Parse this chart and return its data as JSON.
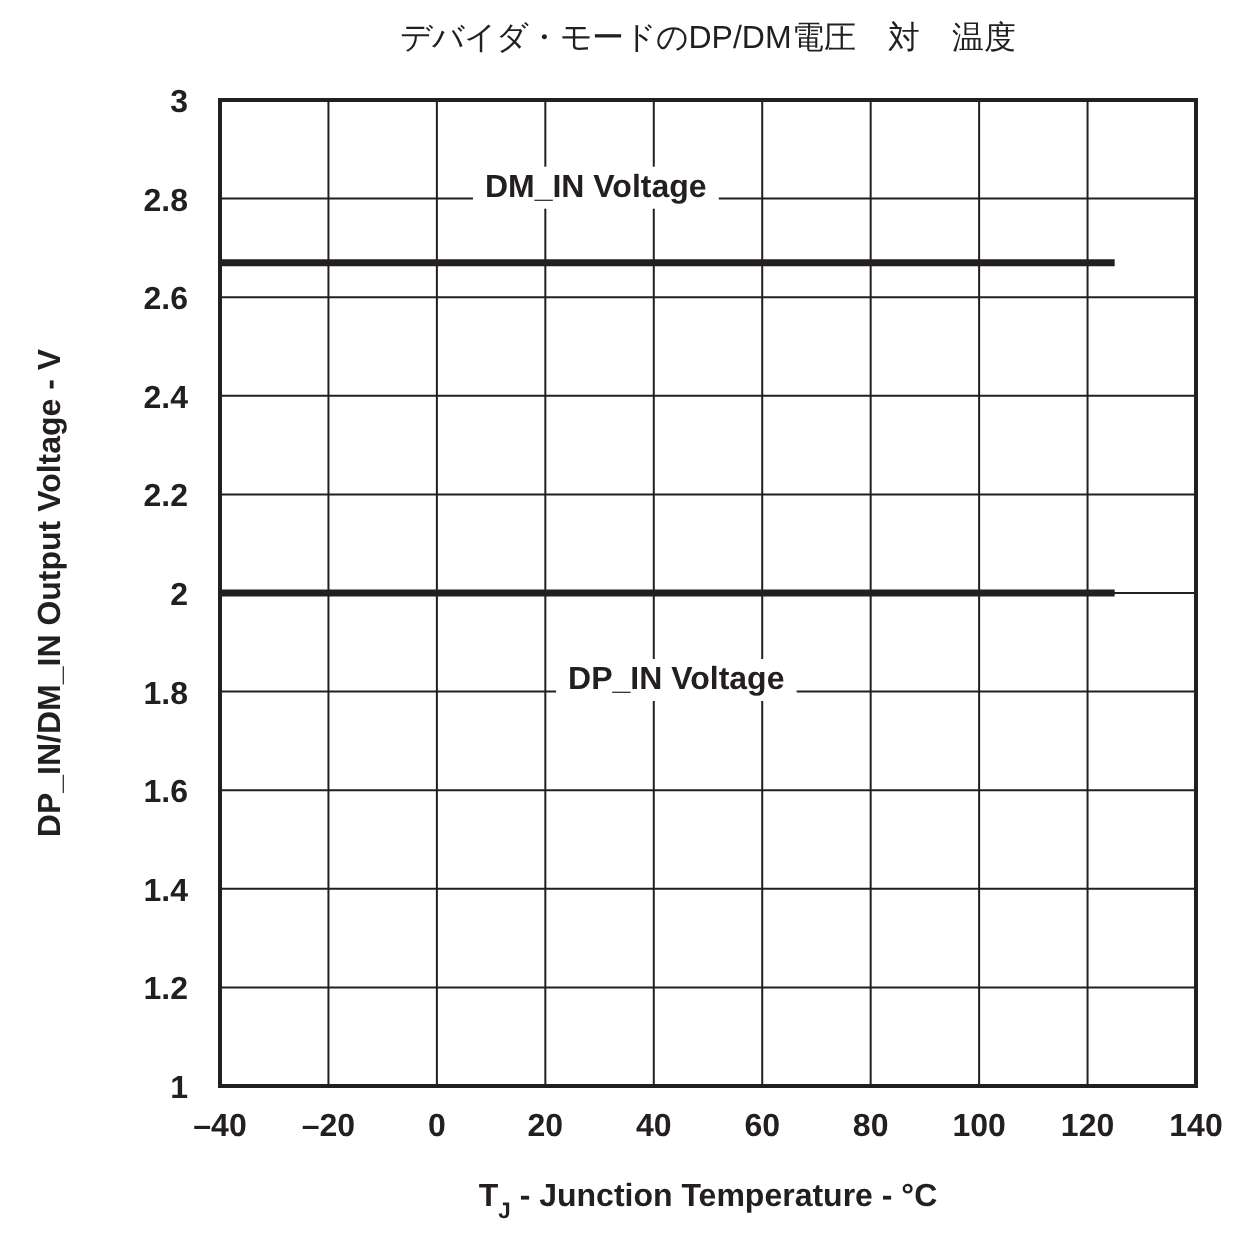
{
  "chart_data": {
    "type": "line",
    "title": "デバイダ・モードのDP/DM電圧　対　温度",
    "xlabel": "T$_{J}$ - Junction Temperature - °C",
    "ylabel": "DP_IN/DM_IN Output Voltage - V",
    "xlim": [
      -40,
      140
    ],
    "ylim": [
      1,
      3
    ],
    "xticks": [
      {
        "value": -40,
        "label": "–40"
      },
      {
        "value": -20,
        "label": "–20"
      },
      0,
      20,
      40,
      60,
      80,
      100,
      120,
      140
    ],
    "yticks": [
      1,
      1.2,
      1.4,
      1.6,
      1.8,
      2,
      2.2,
      2.4,
      2.6,
      2.8,
      3
    ],
    "grid": true,
    "marker": "none",
    "line_style": "solid",
    "x": [
      -40,
      125
    ],
    "series": [
      {
        "name": "DM_IN Voltage",
        "color": "#231f20",
        "values": [
          2.67,
          2.67
        ]
      },
      {
        "name": "DP_IN Voltage",
        "color": "#231f20",
        "values": [
          2.0,
          2.0
        ]
      }
    ]
  }
}
